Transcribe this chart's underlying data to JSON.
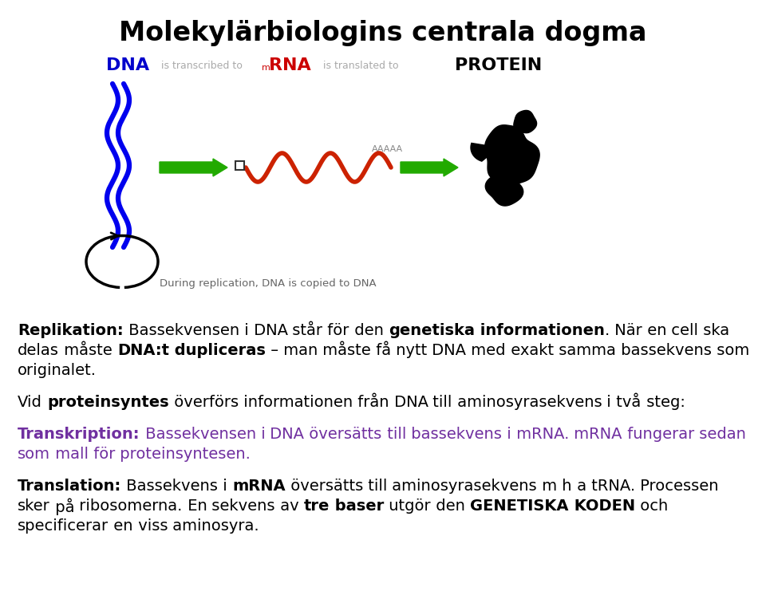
{
  "title": "Molekylärbiologins centrala dogma",
  "title_fontsize": 24,
  "bg_color": "#ffffff",
  "purple_color": "#7030a0",
  "body_paragraphs": [
    {
      "segments": [
        {
          "text": "Replikation:",
          "bold": true,
          "color": "#000000"
        },
        {
          "text": " Bassekvensen i DNA står för den ",
          "bold": false,
          "color": "#000000"
        },
        {
          "text": "genetiska informationen",
          "bold": true,
          "color": "#000000"
        },
        {
          "text": ". När en cell ska delas måste ",
          "bold": false,
          "color": "#000000"
        },
        {
          "text": "DNA:t dupliceras",
          "bold": true,
          "color": "#000000"
        },
        {
          "text": " – man måste få nytt DNA med exakt samma bassekvens som originalet.",
          "bold": false,
          "color": "#000000"
        }
      ]
    },
    {
      "segments": [
        {
          "text": "Vid ",
          "bold": false,
          "color": "#000000"
        },
        {
          "text": "proteinsyntes",
          "bold": true,
          "color": "#000000"
        },
        {
          "text": " överförs informationen från DNA till aminosyrasekvens i två steg:",
          "bold": false,
          "color": "#000000"
        }
      ]
    },
    {
      "segments": [
        {
          "text": "Transkription:",
          "bold": true,
          "color": "#7030a0"
        },
        {
          "text": " Bassekvensen i DNA översätts till bassekvens i mRNA. mRNA fungerar sedan som mall för proteinsyntesen.",
          "bold": false,
          "color": "#7030a0"
        }
      ]
    },
    {
      "segments": [
        {
          "text": "Translation:",
          "bold": true,
          "color": "#000000"
        },
        {
          "text": " Bassekvens i ",
          "bold": false,
          "color": "#000000"
        },
        {
          "text": "mRNA",
          "bold": true,
          "color": "#000000"
        },
        {
          "text": " översätts till aminosyrasekvens m h a tRNA. Processen sker på ribosomerna. En sekvens av ",
          "bold": false,
          "color": "#000000"
        },
        {
          "text": "tre baser",
          "bold": true,
          "color": "#000000"
        },
        {
          "text": " utgör den ",
          "bold": false,
          "color": "#000000"
        },
        {
          "text": "GENETISKA KODEN",
          "bold": true,
          "color": "#000000"
        },
        {
          "text": " och specificerar en viss aminosyra.",
          "bold": false,
          "color": "#000000"
        }
      ]
    }
  ]
}
